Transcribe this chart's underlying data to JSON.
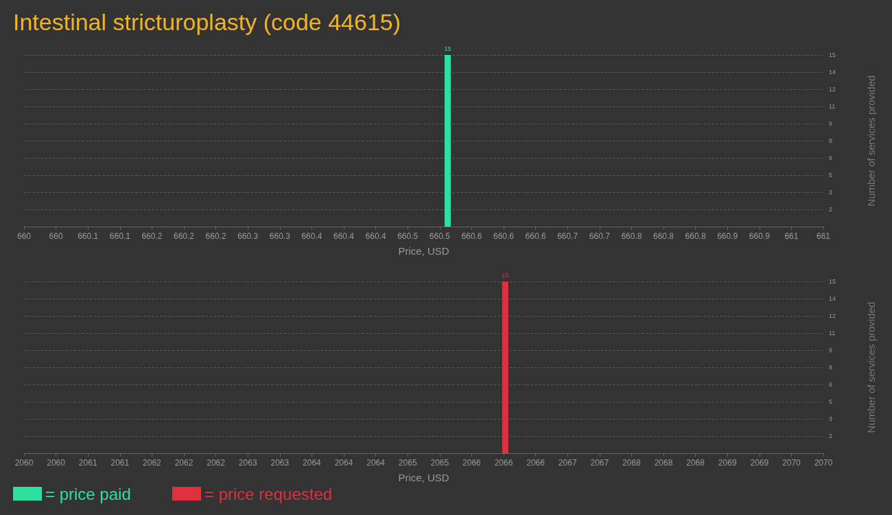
{
  "chart_data": [
    {
      "type": "bar",
      "title": "Intestinal stricturoplasty (code 44615)",
      "xlabel": "Price, USD",
      "ylabel": "Number of services provided",
      "x": [
        660.53
      ],
      "series": [
        {
          "name": "= price paid",
          "color": "#2ee0a0",
          "values": [
            15
          ]
        }
      ],
      "xlim": [
        660,
        661
      ],
      "xticks": [
        {
          "value": 660,
          "label": "660"
        },
        {
          "value": 660.04,
          "label": "660"
        },
        {
          "value": 660.08,
          "label": "660.1"
        },
        {
          "value": 660.12,
          "label": "660.1"
        },
        {
          "value": 660.16,
          "label": "660.2"
        },
        {
          "value": 660.2,
          "label": "660.2"
        },
        {
          "value": 660.24,
          "label": "660.2"
        },
        {
          "value": 660.28,
          "label": "660.3"
        },
        {
          "value": 660.32,
          "label": "660.3"
        },
        {
          "value": 660.36,
          "label": "660.4"
        },
        {
          "value": 660.4,
          "label": "660.4"
        },
        {
          "value": 660.44,
          "label": "660.4"
        },
        {
          "value": 660.48,
          "label": "660.5"
        },
        {
          "value": 660.52,
          "label": "660.5"
        },
        {
          "value": 660.56,
          "label": "660.6"
        },
        {
          "value": 660.6,
          "label": "660.6"
        },
        {
          "value": 660.64,
          "label": "660.6"
        },
        {
          "value": 660.68,
          "label": "660.7"
        },
        {
          "value": 660.72,
          "label": "660.7"
        },
        {
          "value": 660.76,
          "label": "660.8"
        },
        {
          "value": 660.8,
          "label": "660.8"
        },
        {
          "value": 660.84,
          "label": "660.8"
        },
        {
          "value": 660.88,
          "label": "660.9"
        },
        {
          "value": 660.92,
          "label": "660.9"
        },
        {
          "value": 660.96,
          "label": "661"
        },
        {
          "value": 661,
          "label": "661"
        }
      ],
      "ylim": [
        0,
        15
      ],
      "yticks": [
        {
          "value": 1.5,
          "label": "2"
        },
        3,
        {
          "value": 4.5,
          "label": "5"
        },
        6,
        {
          "value": 7.5,
          "label": "8"
        },
        9,
        {
          "value": 10.5,
          "label": "11"
        },
        12,
        {
          "value": 13.5,
          "label": "14"
        },
        15
      ],
      "grid": "y",
      "data_labels": true,
      "legend": "bottom left"
    },
    {
      "type": "bar",
      "xlabel": "Price, USD",
      "ylabel": "Number of services provided",
      "x": [
        2066.02
      ],
      "series": [
        {
          "name": "= price requested",
          "color": "#e0303f",
          "values": [
            15
          ]
        }
      ],
      "xlim": [
        2060,
        2070
      ],
      "xticks": [
        {
          "value": 2060,
          "label": "2060"
        },
        {
          "value": 2060.4,
          "label": "2060"
        },
        {
          "value": 2060.8,
          "label": "2061"
        },
        {
          "value": 2061.2,
          "label": "2061"
        },
        {
          "value": 2061.6,
          "label": "2062"
        },
        {
          "value": 2062,
          "label": "2062"
        },
        {
          "value": 2062.4,
          "label": "2062"
        },
        {
          "value": 2062.8,
          "label": "2063"
        },
        {
          "value": 2063.2,
          "label": "2063"
        },
        {
          "value": 2063.6,
          "label": "2064"
        },
        {
          "value": 2064,
          "label": "2064"
        },
        {
          "value": 2064.4,
          "label": "2064"
        },
        {
          "value": 2064.8,
          "label": "2065"
        },
        {
          "value": 2065.2,
          "label": "2065"
        },
        {
          "value": 2065.6,
          "label": "2066"
        },
        {
          "value": 2066,
          "label": "2066"
        },
        {
          "value": 2066.4,
          "label": "2066"
        },
        {
          "value": 2066.8,
          "label": "2067"
        },
        {
          "value": 2067.2,
          "label": "2067"
        },
        {
          "value": 2067.6,
          "label": "2068"
        },
        {
          "value": 2068,
          "label": "2068"
        },
        {
          "value": 2068.4,
          "label": "2068"
        },
        {
          "value": 2068.8,
          "label": "2069"
        },
        {
          "value": 2069.2,
          "label": "2069"
        },
        {
          "value": 2069.6,
          "label": "2070"
        },
        {
          "value": 2070,
          "label": "2070"
        }
      ],
      "ylim": [
        0,
        15
      ],
      "yticks": [
        {
          "value": 1.5,
          "label": "2"
        },
        3,
        {
          "value": 4.5,
          "label": "5"
        },
        6,
        {
          "value": 7.5,
          "label": "8"
        },
        9,
        {
          "value": 10.5,
          "label": "11"
        },
        12,
        {
          "value": 13.5,
          "label": "14"
        },
        15
      ],
      "grid": "y",
      "data_labels": true,
      "legend": "bottom left"
    }
  ]
}
